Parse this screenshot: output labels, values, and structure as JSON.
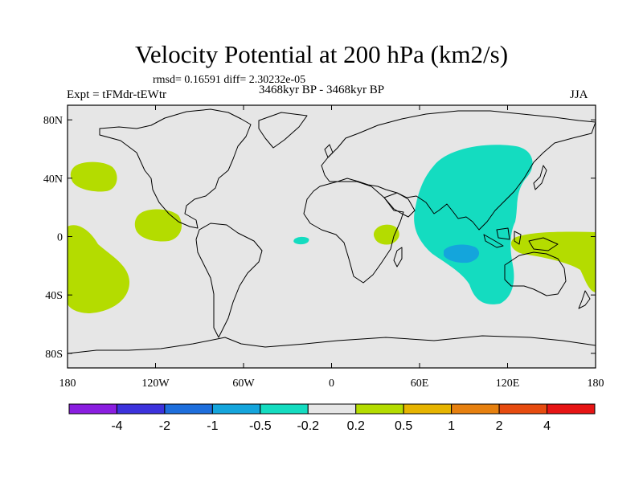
{
  "title": "Velocity Potential at 200 hPa (km2/s)",
  "stats": "rmsd= 0.16591 diff= 2.30232e-05",
  "experiment": "Expt = tFMdr-tEWtr",
  "period": "3468kyr BP - 3468kyr BP",
  "season": "JJA",
  "map": {
    "background_color": "#e6e6e6",
    "land_outline_color": "#000000",
    "lat_ticks": [
      {
        "lat": 80,
        "label": "80N"
      },
      {
        "lat": 40,
        "label": "40N"
      },
      {
        "lat": 0,
        "label": "0"
      },
      {
        "lat": -40,
        "label": "40S"
      },
      {
        "lat": -80,
        "label": "80S"
      }
    ],
    "lon_ticks": [
      {
        "lon": -180,
        "label": "180"
      },
      {
        "lon": -120,
        "label": "120W"
      },
      {
        "lon": -60,
        "label": "60W"
      },
      {
        "lon": 0,
        "label": "0"
      },
      {
        "lon": 60,
        "label": "60E"
      },
      {
        "lon": 120,
        "label": "120E"
      },
      {
        "lon": 180,
        "label": "180"
      }
    ]
  },
  "colorbar": {
    "colors": [
      "#8a1ee0",
      "#3c32dc",
      "#1e6edc",
      "#14a5dc",
      "#14dcc0",
      "#e6e6e6",
      "#b4dc00",
      "#e6b400",
      "#e6800f",
      "#e64b0f",
      "#e61414"
    ],
    "labels": [
      "-4",
      "-2",
      "-1",
      "-0.5",
      "-0.2",
      "0.2",
      "0.5",
      "1",
      "2",
      "4"
    ]
  }
}
